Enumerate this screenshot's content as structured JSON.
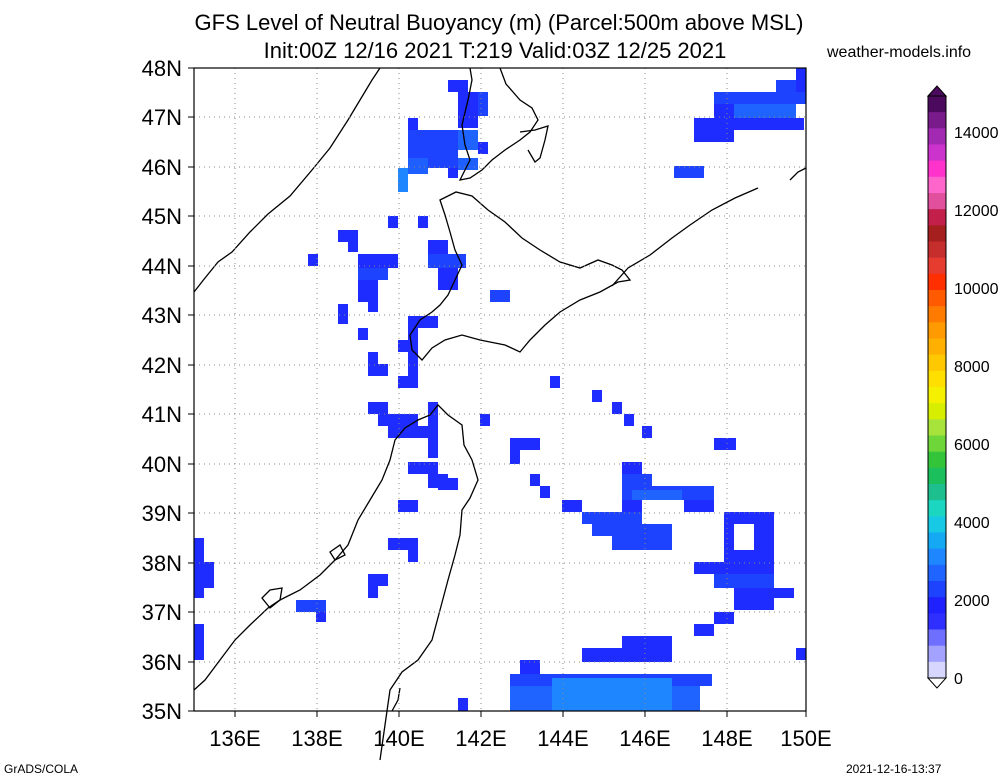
{
  "title_line1": "GFS Level of Neutral Buoyancy (m) (Parcel:500m above MSL)",
  "title_line2": "Init:00Z 12/16 2021 T:219 Valid:03Z 12/25 2021",
  "site": "weather-models.info",
  "footer_left": "GrADS/COLA",
  "footer_right": "2021-12-16-13:37",
  "map": {
    "lat_labels": [
      "48N",
      "47N",
      "46N",
      "45N",
      "44N",
      "43N",
      "42N",
      "41N",
      "40N",
      "39N",
      "38N",
      "37N",
      "36N",
      "35N"
    ],
    "lon_labels": [
      "136E",
      "138E",
      "140E",
      "142E",
      "144E",
      "146E",
      "148E",
      "150E"
    ],
    "lat_range": [
      35,
      48
    ],
    "lon_range": [
      134.75,
      150
    ],
    "grid": true
  },
  "colorbar": {
    "labels": [
      "14000",
      "12000",
      "10000",
      "8000",
      "6000",
      "4000",
      "2000",
      "0"
    ],
    "colors": [
      "#4b0a5e",
      "#7a1b8c",
      "#a22ab3",
      "#cc33cc",
      "#ff33cc",
      "#ff66cc",
      "#e1509c",
      "#c21f4a",
      "#a61f1f",
      "#c62d2d",
      "#e63c2f",
      "#ff2f00",
      "#ff5a00",
      "#ff7b00",
      "#ff9a00",
      "#ffb000",
      "#ffc800",
      "#ffdf00",
      "#f5ef00",
      "#d8ee00",
      "#a7e33a",
      "#6fd63a",
      "#34c43a",
      "#1bbf5b",
      "#1dbf8e",
      "#1bd6c0",
      "#17c9e4",
      "#14a9f2",
      "#1e87ff",
      "#1f64ff",
      "#1e43ff",
      "#1f22ff",
      "#2f2fff",
      "#6f6fff",
      "#a3a3ff",
      "#d6d6ff"
    ]
  }
}
